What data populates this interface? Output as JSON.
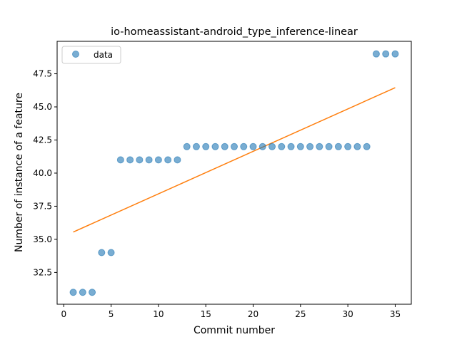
{
  "chart_data": {
    "type": "scatter",
    "title": "io-homeassistant-android_type_inference-linear",
    "xlabel": "Commit number",
    "ylabel": "Number of instance of a feature",
    "xlim": [
      -0.7,
      36.7
    ],
    "ylim": [
      30.1,
      49.95
    ],
    "xticks": [
      0,
      5,
      10,
      15,
      20,
      25,
      30,
      35
    ],
    "yticks": [
      32.5,
      35.0,
      37.5,
      40.0,
      42.5,
      45.0,
      47.5
    ],
    "xtick_labels": [
      "0",
      "5",
      "10",
      "15",
      "20",
      "25",
      "30",
      "35"
    ],
    "ytick_labels": [
      "32.5",
      "35.0",
      "37.5",
      "40.0",
      "42.5",
      "45.0",
      "47.5"
    ],
    "grid": false,
    "legend": {
      "position": "top-left",
      "entries": [
        "data"
      ]
    },
    "colors": {
      "points": "#1f77b4",
      "fit": "#ff7f0e"
    },
    "series": [
      {
        "name": "data",
        "kind": "scatter",
        "x": [
          1,
          2,
          3,
          4,
          5,
          6,
          7,
          8,
          9,
          10,
          11,
          12,
          13,
          14,
          15,
          16,
          17,
          18,
          19,
          20,
          21,
          22,
          23,
          24,
          25,
          26,
          27,
          28,
          29,
          30,
          31,
          32,
          33,
          34,
          35
        ],
        "y": [
          31,
          31,
          31,
          34,
          34,
          41,
          41,
          41,
          41,
          41,
          41,
          41,
          42,
          42,
          42,
          42,
          42,
          42,
          42,
          42,
          42,
          42,
          42,
          42,
          42,
          42,
          42,
          42,
          42,
          42,
          42,
          42,
          49,
          49,
          49
        ]
      },
      {
        "kind": "line",
        "x": [
          1,
          35
        ],
        "y": [
          35.55,
          46.45
        ]
      }
    ]
  }
}
